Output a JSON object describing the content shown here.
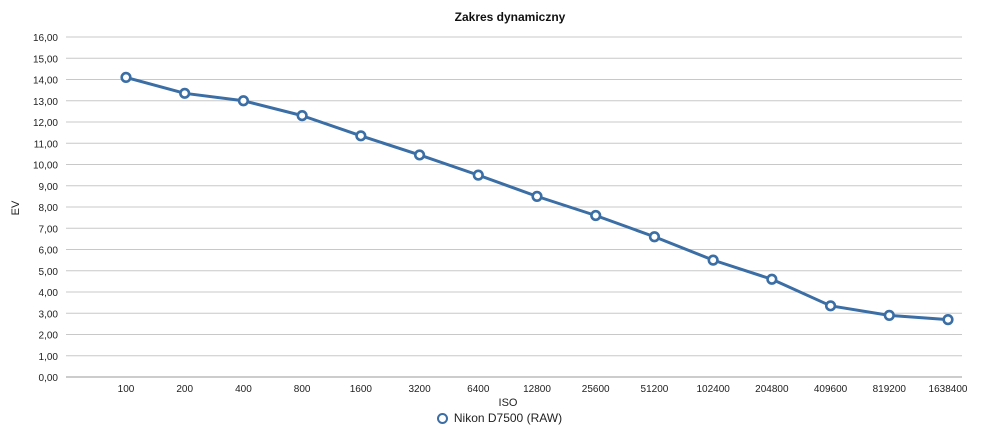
{
  "chart_data": {
    "type": "line",
    "title": "Zakres dynamiczny",
    "xlabel": "ISO",
    "ylabel": "EV",
    "categories": [
      "100",
      "200",
      "400",
      "800",
      "1600",
      "3200",
      "6400",
      "12800",
      "25600",
      "51200",
      "102400",
      "204800",
      "409600",
      "819200",
      "1638400"
    ],
    "series": [
      {
        "name": "Nikon D7500 (RAW)",
        "values": [
          14.1,
          13.35,
          13.0,
          12.3,
          11.35,
          10.45,
          9.5,
          8.5,
          7.6,
          6.6,
          5.5,
          4.6,
          3.35,
          2.9,
          2.7
        ],
        "color": "#3b6ea5"
      }
    ],
    "ylim": [
      0,
      16
    ],
    "ytick_labels": [
      "0,00",
      "1,00",
      "2,00",
      "3,00",
      "4,00",
      "5,00",
      "6,00",
      "7,00",
      "8,00",
      "9,00",
      "10,00",
      "11,00",
      "12,00",
      "13,00",
      "14,00",
      "15,00",
      "16,00"
    ],
    "grid": true,
    "legend_position": "bottom"
  }
}
